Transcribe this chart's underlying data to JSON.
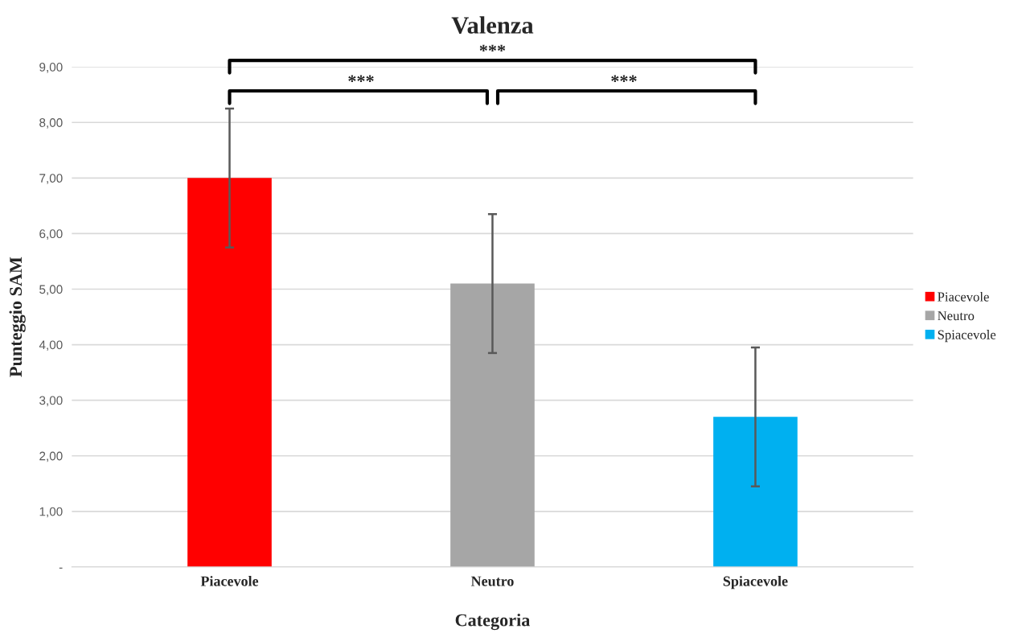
{
  "chart_data": {
    "type": "bar",
    "title": "Valenza",
    "xlabel": "Categoria",
    "ylabel": "Punteggio SAM",
    "categories": [
      "Piacevole",
      "Neutro",
      "Spiacevole"
    ],
    "series": [
      {
        "name": "Piacevole",
        "color": "#ff0000",
        "values": [
          7.0,
          null,
          null
        ],
        "errors": [
          1.25,
          null,
          null
        ]
      },
      {
        "name": "Neutro",
        "color": "#a6a6a6",
        "values": [
          null,
          5.1,
          null
        ],
        "errors": [
          null,
          1.25,
          null
        ]
      },
      {
        "name": "Spiacevole",
        "color": "#00b0f0",
        "values": [
          null,
          null,
          2.7
        ],
        "errors": [
          null,
          null,
          1.25
        ]
      }
    ],
    "ylim": [
      0,
      9
    ],
    "yticks": [
      {
        "value": 0,
        "label": "-"
      },
      {
        "value": 1,
        "label": "1,00"
      },
      {
        "value": 2,
        "label": "2,00"
      },
      {
        "value": 3,
        "label": "3,00"
      },
      {
        "value": 4,
        "label": "4,00"
      },
      {
        "value": 5,
        "label": "5,00"
      },
      {
        "value": 6,
        "label": "6,00"
      },
      {
        "value": 7,
        "label": "7,00"
      },
      {
        "value": 8,
        "label": "8,00"
      },
      {
        "value": 9,
        "label": "9,00"
      }
    ],
    "grid": "y",
    "legend": "right",
    "annotations": [
      "***",
      "***",
      "***"
    ]
  }
}
